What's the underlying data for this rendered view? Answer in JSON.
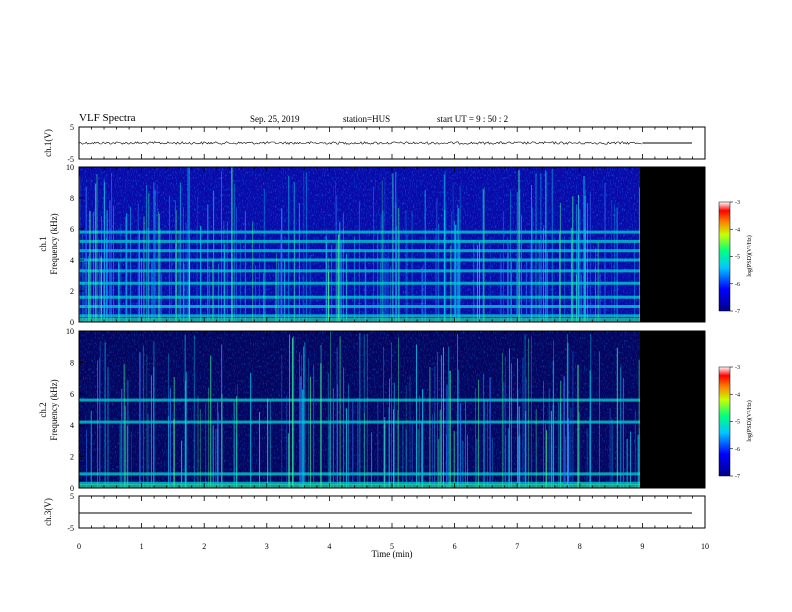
{
  "header": {
    "title": "VLF Spectra",
    "date": "Sep. 25, 2019",
    "station": "station=HUS",
    "start": "start  UT  =   9 : 50 : 2"
  },
  "chart_data": [
    {
      "type": "line",
      "panel": "ch1-waveform",
      "ylabel": "ch.1(V)",
      "ylim": [
        -5,
        5
      ],
      "yticks": [
        "5",
        "-5"
      ],
      "xlim": [
        0,
        10
      ],
      "description_values": {
        "baseline": 0,
        "data_end_min": 9.0
      }
    },
    {
      "type": "heatmap",
      "panel": "ch1-spectrogram",
      "ylabel_top": "ch.1",
      "ylabel": "Frequency  (kHz)",
      "ylim": [
        0,
        10
      ],
      "yticks": [
        "0",
        "2",
        "4",
        "6",
        "8",
        "10"
      ],
      "xlim": [
        0,
        10
      ],
      "data_end_min": 9.0,
      "emission_bands_khz": [
        0.4,
        1.0,
        1.6,
        2.5,
        3.3,
        4.0,
        4.6,
        5.2,
        5.8
      ],
      "colorbar": {
        "label": "log(PSD)(V²/Hz)",
        "range": [
          -7,
          -3
        ],
        "ticks": [
          "-3",
          "-4",
          "-5",
          "-6",
          "-7"
        ]
      }
    },
    {
      "type": "heatmap",
      "panel": "ch2-spectrogram",
      "ylabel_top": "ch.2",
      "ylabel": "Frequency  (kHz)",
      "ylim": [
        0,
        10
      ],
      "yticks": [
        "0",
        "2",
        "4",
        "6",
        "8",
        "10"
      ],
      "xlim": [
        0,
        10
      ],
      "data_end_min": 9.0,
      "emission_bands_khz": [
        0.3,
        0.9,
        4.2,
        5.6
      ],
      "colorbar": {
        "label": "log(PSD)(V²/Hz)",
        "range": [
          -7,
          -3
        ],
        "ticks": [
          "-3",
          "-4",
          "-5",
          "-6",
          "-7"
        ]
      }
    },
    {
      "type": "line",
      "panel": "ch3-waveform",
      "ylabel": "ch.3(V)",
      "ylim": [
        -5,
        5
      ],
      "yticks": [
        "5",
        "-5"
      ],
      "xlim": [
        0,
        10
      ],
      "description_values": {
        "baseline": 0
      }
    }
  ],
  "xaxis": {
    "label": "Time  (min)",
    "ticks": [
      "0",
      "1",
      "2",
      "3",
      "4",
      "5",
      "6",
      "7",
      "8",
      "9",
      "10"
    ]
  },
  "colors": {
    "background": "#ffffff",
    "no_data": "#000000",
    "spectrogram_low": "#00008b",
    "spectrogram_band": "#00e5c8"
  }
}
